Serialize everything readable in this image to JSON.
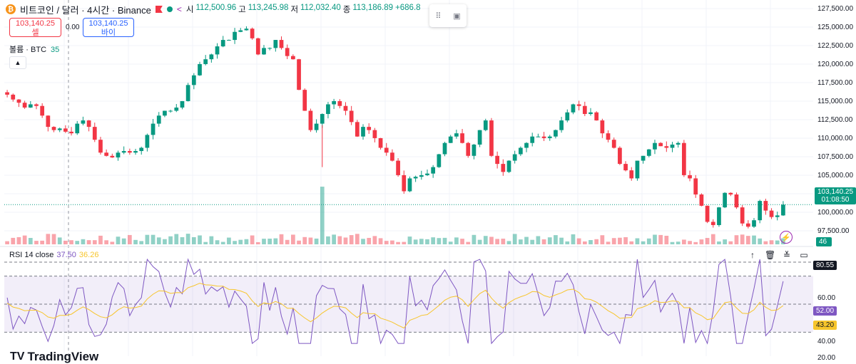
{
  "header": {
    "coin_icon": "bitcoin-icon",
    "symbol": "비트코인 / 달러 · 4시간 · Binance",
    "open_label": "시",
    "open_value": "112,500.96",
    "high_label": "고",
    "high_value": "113,245.98",
    "low_label": "저",
    "low_value": "112,032.40",
    "close_label": "종",
    "close_value": "113,186.89",
    "change_value": "+686.8"
  },
  "trade": {
    "sell_price": "103,140.25",
    "sell_label": "셀",
    "spread": "0.00",
    "buy_price": "103,140.25",
    "buy_label": "바이"
  },
  "volume": {
    "label": "볼륨 · BTC",
    "value": "35"
  },
  "rsi": {
    "label": "RSI 14 close",
    "value1": "37.50",
    "value2": "36.26"
  },
  "price_axis": [
    "127,500.00",
    "125,000.00",
    "122,500.00",
    "120,000.00",
    "117,500.00",
    "115,000.00",
    "112,500.00",
    "110,000.00",
    "107,500.00",
    "105,000.00",
    "102,500.00",
    "100,000.00",
    "97,500.00"
  ],
  "rsi_axis": [
    "60.00",
    "40.00",
    "20.00"
  ],
  "labels": {
    "last_price": "103,140.25",
    "countdown": "01:08:50",
    "volume_tag": "46",
    "rsi_high": "80.55",
    "rsi_val": "52.00",
    "rsi_ma": "43.20"
  },
  "logo": "TradingView",
  "colors": {
    "up": "#089981",
    "down": "#f23645",
    "rsi": "#7e57c2",
    "rsi_ma": "#f7c52c"
  },
  "chart_data": {
    "type": "candlestick",
    "ylim": [
      97500,
      127500
    ],
    "close_path": [
      116800,
      116200,
      115800,
      115200,
      115600,
      115400,
      114200,
      112800,
      112400,
      112600,
      112200,
      112000,
      113200,
      113600,
      112800,
      111200,
      109600,
      109200,
      109000,
      109600,
      109800,
      109600,
      109800,
      110200,
      111800,
      113200,
      114200,
      114800,
      114800,
      115200,
      116000,
      118000,
      119200,
      120600,
      121200,
      121800,
      122800,
      123600,
      123600,
      124600,
      124800,
      125000,
      123800,
      121800,
      122600,
      122600,
      123600,
      122600,
      121600,
      121200,
      117400,
      114800,
      112400,
      113200,
      114400,
      115600,
      116000,
      115400,
      114800,
      113400,
      111600,
      112800,
      112400,
      111400,
      110200,
      109600,
      108600,
      106800,
      104800,
      106400,
      106600,
      106800,
      107000,
      107800,
      109400,
      110800,
      111600,
      112000,
      110800,
      109200,
      110600,
      112400,
      113600,
      109200,
      108200,
      107200,
      108600,
      109400,
      110200,
      110800,
      111600,
      111600,
      111400,
      111600,
      112400,
      113600,
      114600,
      115600,
      115400,
      114400,
      114600,
      113600,
      112000,
      111200,
      110200,
      108200,
      107400,
      106400,
      108600,
      109200,
      110000,
      110800,
      110400,
      110200,
      110600,
      110800,
      106800,
      106400,
      104400,
      103000,
      101000,
      100600,
      102800,
      104600,
      104400,
      102800,
      100800,
      100400,
      101200,
      103600,
      102400,
      101600,
      101800,
      103140
    ],
    "volume_tag": 46
  }
}
